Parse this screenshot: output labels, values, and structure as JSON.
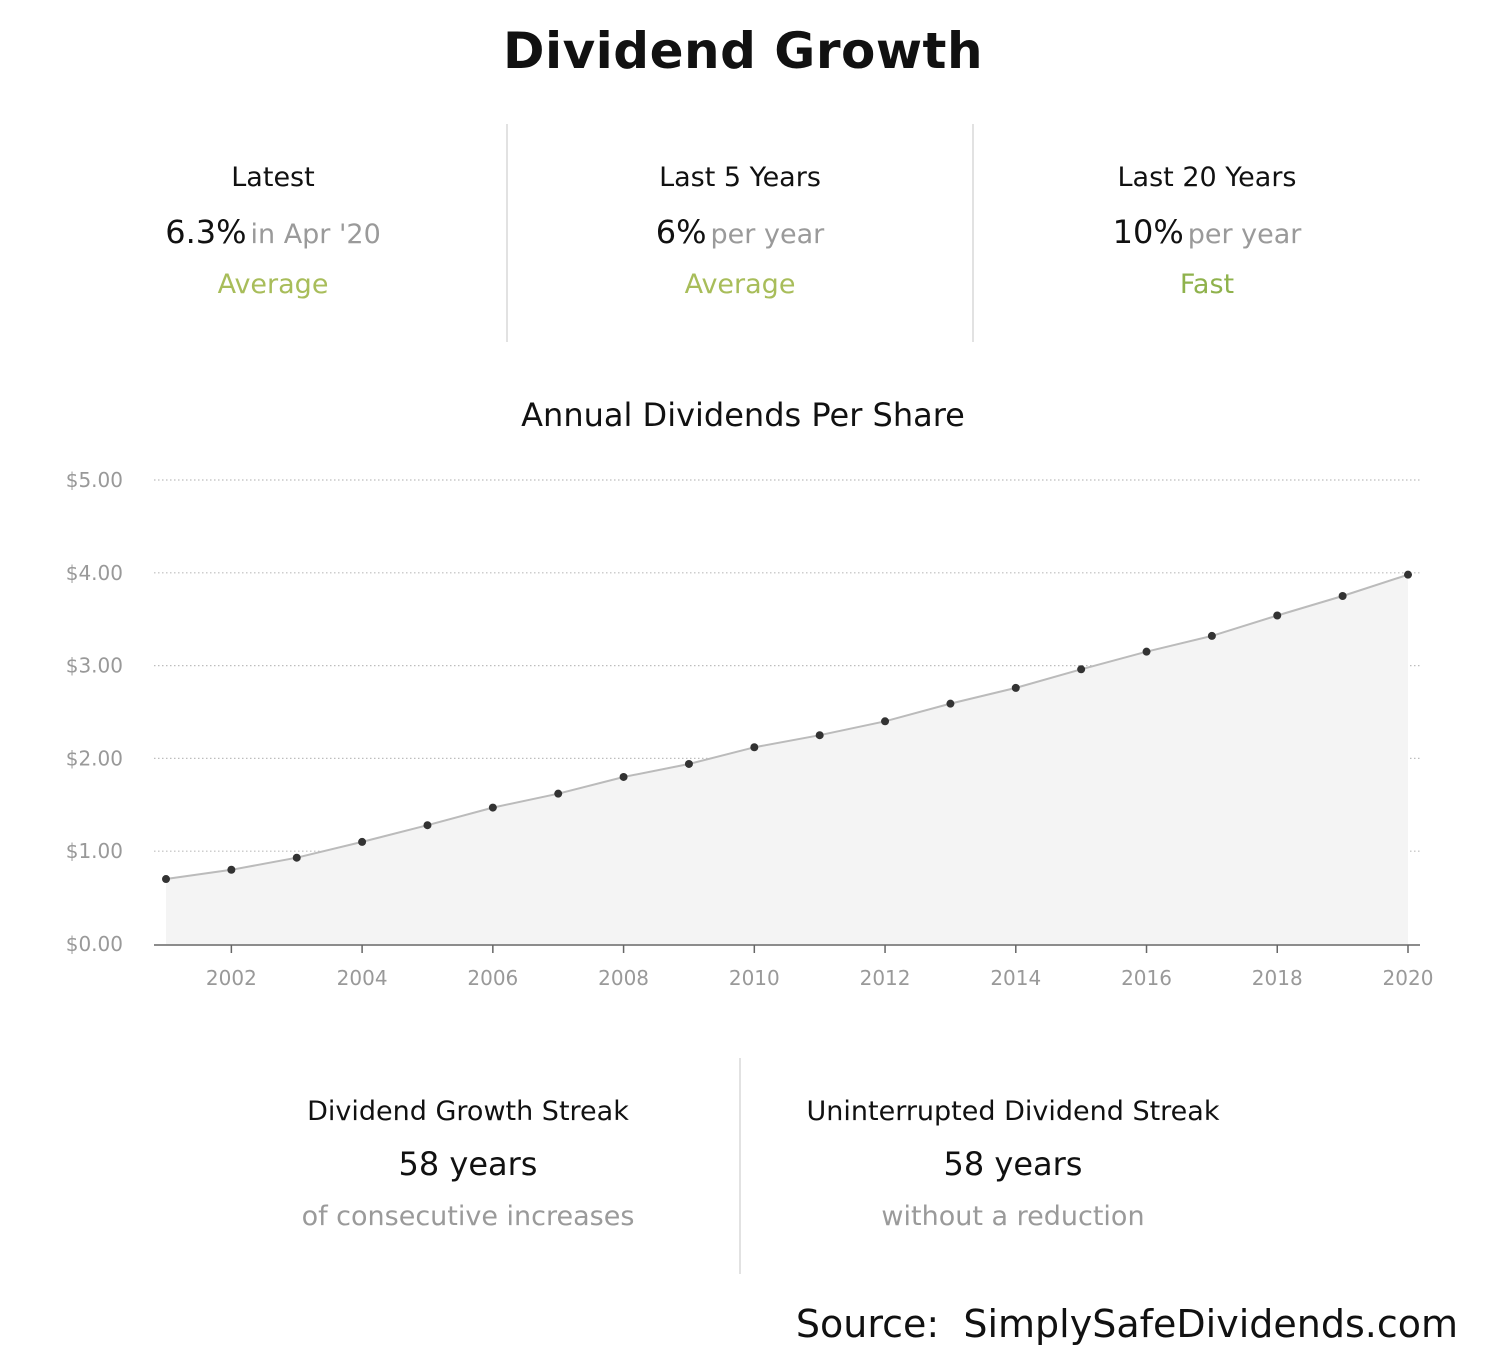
{
  "title": "Dividend Growth",
  "metrics": [
    {
      "label": "Latest",
      "value": "6.3%",
      "suffix": "in Apr '20",
      "rating": "Average",
      "rating_color": "#a8bd5a"
    },
    {
      "label": "Last 5 Years",
      "value": "6%",
      "suffix": "per year",
      "rating": "Average",
      "rating_color": "#a8bd5a"
    },
    {
      "label": "Last 20 Years",
      "value": "10%",
      "suffix": "per year",
      "rating": "Fast",
      "rating_color": "#8fb24c"
    }
  ],
  "chart_data": {
    "type": "area",
    "title": "Annual Dividends Per Share",
    "xlabel": "",
    "ylabel": "",
    "x": [
      2001,
      2002,
      2003,
      2004,
      2005,
      2006,
      2007,
      2008,
      2009,
      2010,
      2011,
      2012,
      2013,
      2014,
      2015,
      2016,
      2017,
      2018,
      2019,
      2020
    ],
    "series": [
      {
        "name": "",
        "values": [
          0.7,
          0.8,
          0.93,
          1.1,
          1.28,
          1.47,
          1.62,
          1.8,
          1.94,
          2.12,
          2.25,
          2.4,
          2.59,
          2.76,
          2.96,
          3.15,
          3.32,
          3.54,
          3.75,
          3.98
        ]
      }
    ],
    "xlim": [
      2001,
      2020
    ],
    "ylim": [
      0,
      5
    ],
    "y_ticks": [
      "$0.00",
      "$1.00",
      "$2.00",
      "$3.00",
      "$4.00",
      "$5.00"
    ],
    "x_ticks": [
      "2002",
      "2004",
      "2006",
      "2008",
      "2010",
      "2012",
      "2014",
      "2016",
      "2018",
      "2020"
    ],
    "grid": "horizontal dotted",
    "legend": "none",
    "line_color": "#bbbbbb",
    "fill_color": "#f4f4f4",
    "point_color": "#333333"
  },
  "streaks": [
    {
      "label": "Dividend Growth Streak",
      "value": "58 years",
      "sub": "of consecutive increases"
    },
    {
      "label": "Uninterrupted Dividend Streak",
      "value": "58 years",
      "sub": "without a reduction"
    }
  ],
  "source": "Source:  SimplySafeDividends.com"
}
